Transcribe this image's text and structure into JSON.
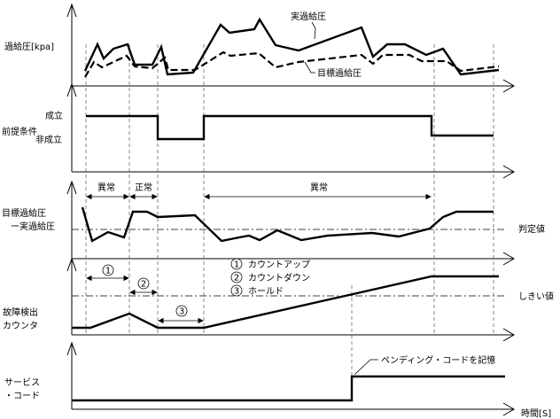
{
  "panels": {
    "boost": {
      "ylabel": "過給圧[kpa]",
      "actual_label": "実過給圧",
      "target_label": "目標過給圧"
    },
    "precondition": {
      "ylabel": "前提条件",
      "high_label": "成立",
      "low_label": "非成立"
    },
    "difference": {
      "ylabel_line1": "目標過給圧",
      "ylabel_line2": "ー実過給圧",
      "threshold_label": "判定値",
      "periods": [
        "異常",
        "正常",
        "異常"
      ]
    },
    "counter": {
      "ylabel_line1": "故障検出",
      "ylabel_line2": "カウンタ",
      "threshold_label": "しきい値",
      "markers": [
        "1",
        "2",
        "3"
      ],
      "legend": [
        {
          "mark": "1",
          "text": "カウントアップ"
        },
        {
          "mark": "2",
          "text": "カウントダウン"
        },
        {
          "mark": "3",
          "text": "ホールド"
        }
      ]
    },
    "service_code": {
      "ylabel_line1": "サービス",
      "ylabel_line2": "・コード",
      "annotation": "ペンディング・コードを記憶"
    }
  },
  "xaxis": {
    "label": "時間[S]"
  }
}
